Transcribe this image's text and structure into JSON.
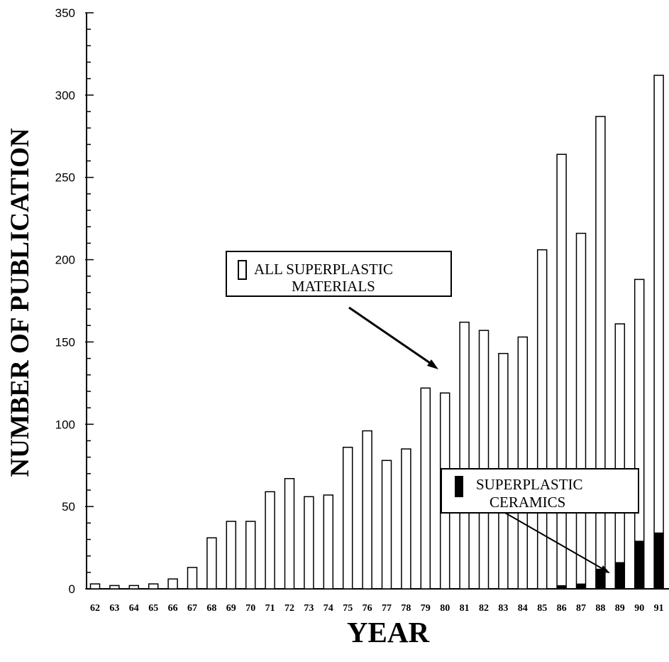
{
  "chart_data": {
    "type": "bar",
    "xlabel": "YEAR",
    "ylabel": "NUMBER OF PUBLICATION",
    "ylim": [
      0,
      350
    ],
    "yticks": [
      0,
      50,
      100,
      150,
      200,
      250,
      300,
      350
    ],
    "categories": [
      "62",
      "63",
      "64",
      "65",
      "66",
      "67",
      "68",
      "69",
      "70",
      "71",
      "72",
      "73",
      "74",
      "75",
      "76",
      "77",
      "78",
      "79",
      "80",
      "81",
      "82",
      "83",
      "84",
      "85",
      "86",
      "87",
      "88",
      "89",
      "90",
      "91"
    ],
    "series": [
      {
        "name": "ALL SUPERPLASTIC MATERIALS",
        "color": "#ffffff",
        "values": [
          3,
          2,
          2,
          3,
          6,
          13,
          31,
          41,
          41,
          59,
          67,
          56,
          57,
          86,
          96,
          78,
          85,
          122,
          119,
          162,
          157,
          143,
          153,
          206,
          264,
          216,
          287,
          161,
          188,
          312
        ]
      },
      {
        "name": "SUPERPLASTIC CERAMICS",
        "color": "#000000",
        "values": [
          0,
          0,
          0,
          0,
          0,
          0,
          0,
          0,
          0,
          0,
          0,
          0,
          0,
          0,
          0,
          0,
          0,
          0,
          0,
          0,
          0,
          0,
          0,
          0,
          2,
          3,
          12,
          16,
          29,
          34
        ]
      }
    ],
    "legend": [
      {
        "label_line1": "ALL SUPERPLASTIC",
        "label_line2": "MATERIALS",
        "swatch": "white"
      },
      {
        "label_line1": "SUPERPLASTIC",
        "label_line2": "CERAMICS",
        "swatch": "black"
      }
    ],
    "grid": false
  }
}
